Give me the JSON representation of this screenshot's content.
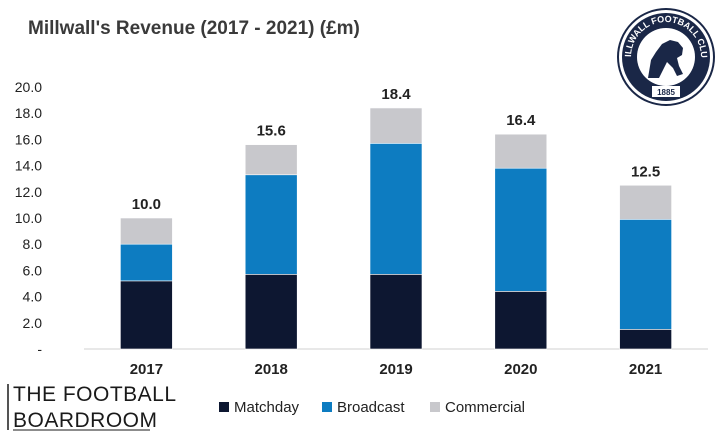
{
  "colors": {
    "matchday": "#0d1731",
    "broadcast": "#0d7cc1",
    "commercial": "#c8c8cc",
    "axis": "#d0d0d0",
    "crest_navy": "#1a2747"
  },
  "branding": {
    "line1": "THE FOOTBALL",
    "line2": "BOARDROOM",
    "crest_text": "MILLWALL FOOTBALL CLUB",
    "crest_year": "1885"
  },
  "chart_data": {
    "type": "bar",
    "stacked": true,
    "title": "Millwall's Revenue (2017 - 2021) (£m)",
    "xlabel": "",
    "ylabel": "",
    "categories": [
      "2017",
      "2018",
      "2019",
      "2020",
      "2021"
    ],
    "series": [
      {
        "name": "Matchday",
        "color": "#0d1731",
        "values": [
          5.2,
          5.7,
          5.7,
          4.4,
          1.5
        ]
      },
      {
        "name": "Broadcast",
        "color": "#0d7cc1",
        "values": [
          2.8,
          7.6,
          10.0,
          9.4,
          8.4
        ]
      },
      {
        "name": "Commercial",
        "color": "#c8c8cc",
        "values": [
          2.0,
          2.3,
          2.7,
          2.6,
          2.6
        ]
      }
    ],
    "totals": [
      "10.0",
      "15.6",
      "18.4",
      "16.4",
      "12.5"
    ],
    "ylim": [
      0,
      20
    ],
    "yticks": [
      0,
      2,
      4,
      6,
      8,
      10,
      12,
      14,
      16,
      18,
      20
    ],
    "ytick_labels": [
      "-",
      "2.0",
      "4.0",
      "6.0",
      "8.0",
      "10.0",
      "12.0",
      "14.0",
      "16.0",
      "18.0",
      "20.0"
    ],
    "legend": [
      "Matchday",
      "Broadcast",
      "Commercial"
    ],
    "legend_position": "bottom",
    "grid": false
  }
}
